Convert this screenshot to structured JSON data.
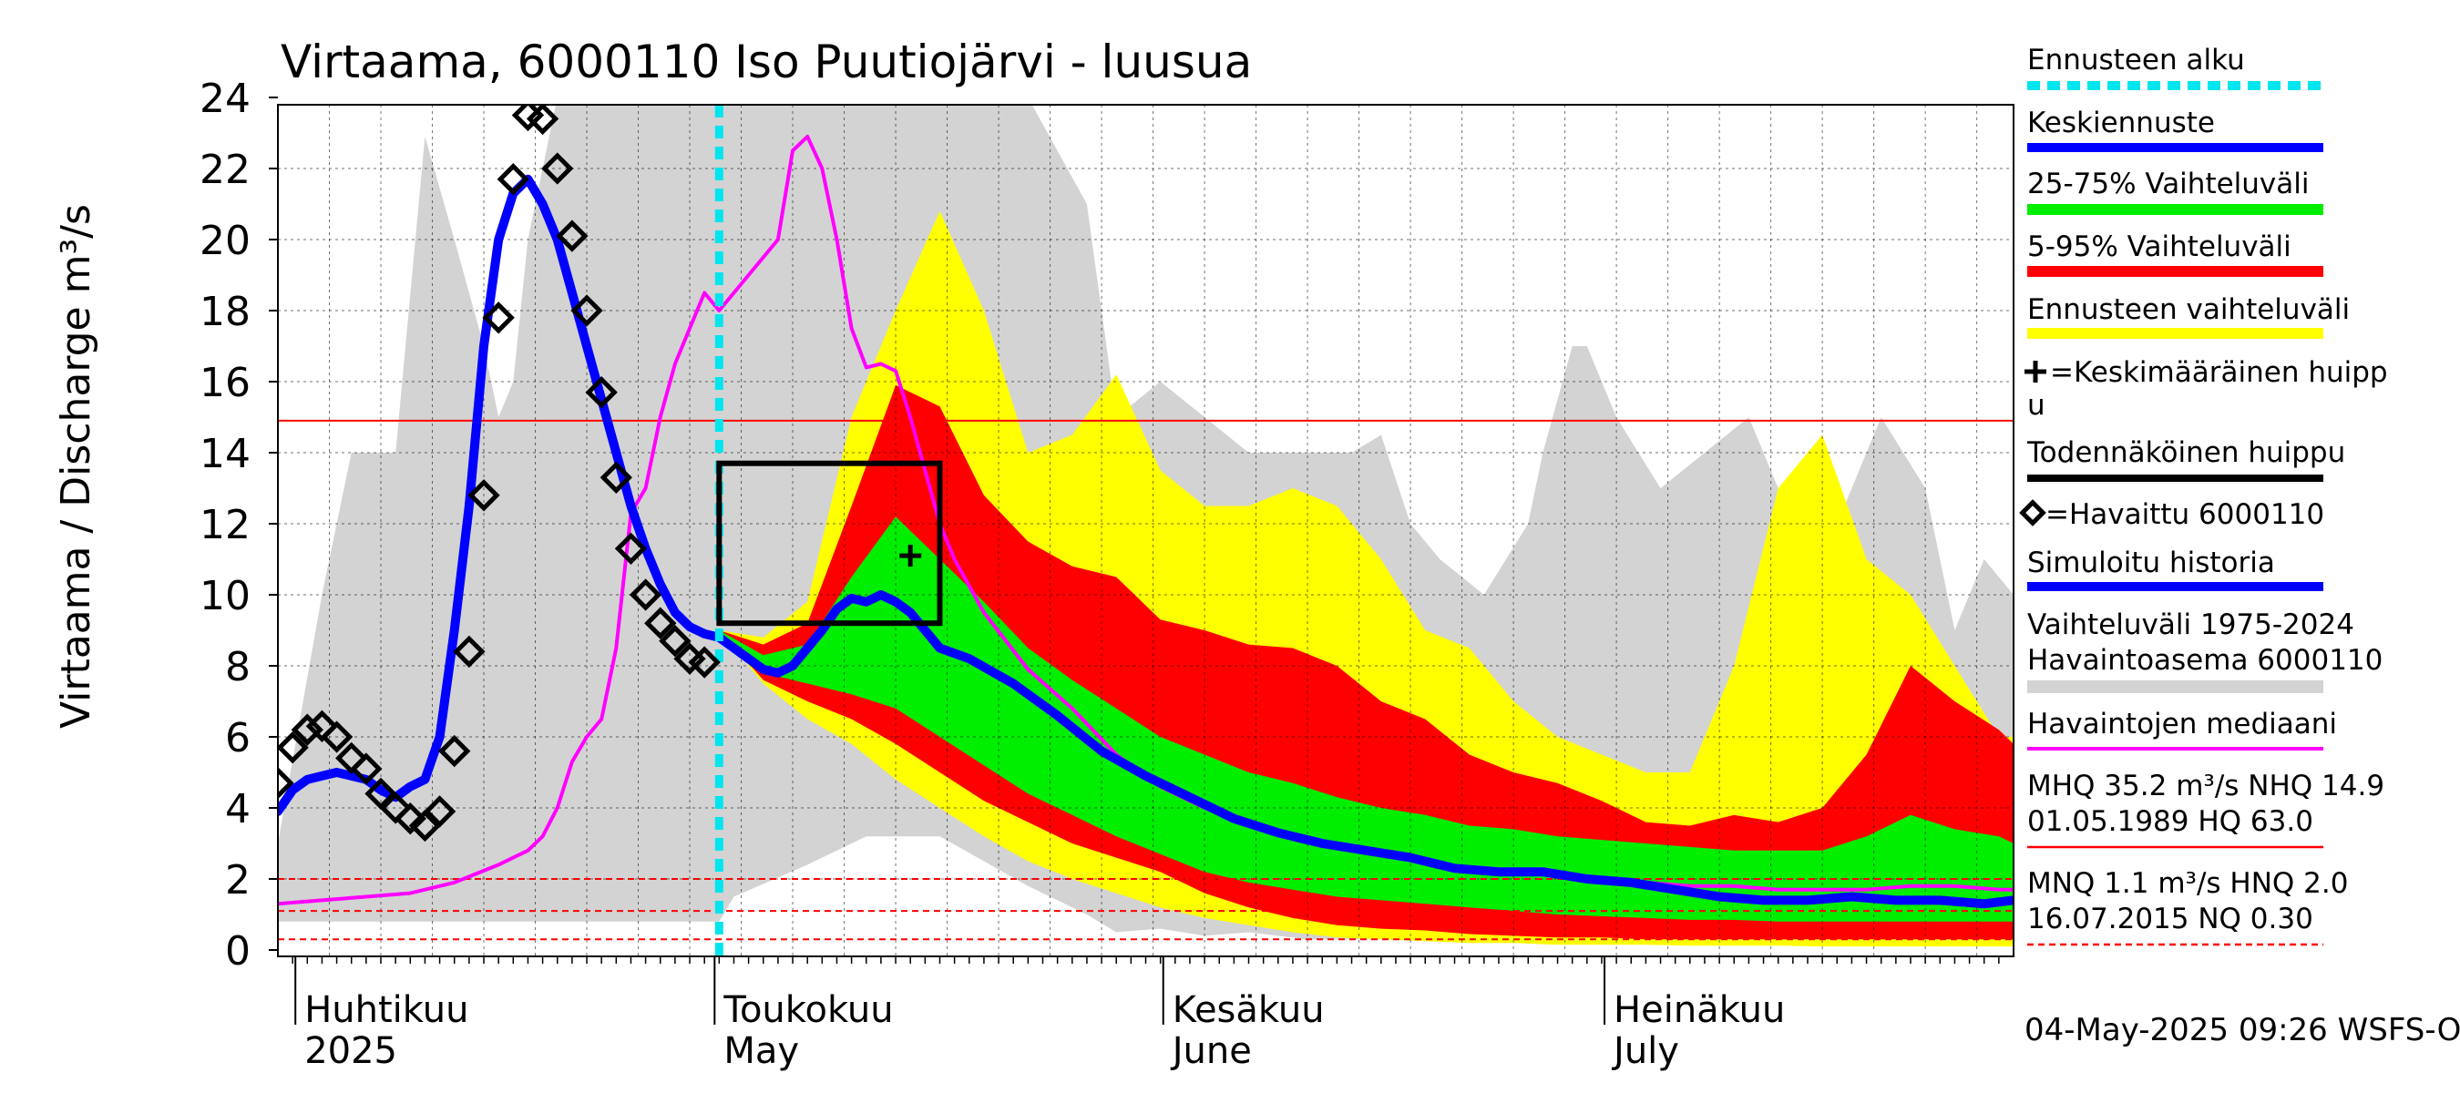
{
  "chart_data": {
    "type": "area",
    "title": "Virtaama, 6000110 Iso Puutiojärvi - luusua",
    "ylabel": "Virtaama / Discharge    m³/s",
    "ylim": [
      0,
      24
    ],
    "yticks": [
      "0",
      "2",
      "4",
      "6",
      "8",
      "10",
      "12",
      "14",
      "16",
      "18",
      "20",
      "22",
      "24"
    ],
    "x_range_days": [
      0,
      118
    ],
    "forecast_start_day": 30,
    "month_labels": [
      {
        "day": 1.5,
        "fi": "Huhtikuu",
        "en": "2025"
      },
      {
        "day": 30,
        "fi": "Toukokuu",
        "en": "May"
      },
      {
        "day": 60.5,
        "fi": "Kesäkuu",
        "en": "June"
      },
      {
        "day": 90.5,
        "fi": "Heinäkuu",
        "en": "July"
      }
    ],
    "reference_lines": [
      {
        "value": 14.9,
        "style": "solid"
      },
      {
        "value": 2.0,
        "style": "dashed"
      },
      {
        "value": 1.1,
        "style": "dashed"
      },
      {
        "value": 0.3,
        "style": "dashed"
      }
    ],
    "historical_range": {
      "x": [
        0,
        3,
        5,
        8,
        10,
        12,
        14,
        15,
        16,
        17,
        19,
        22,
        24,
        27,
        30,
        31,
        36,
        40,
        45,
        51,
        55,
        57,
        60,
        63,
        66,
        70,
        73,
        75,
        77,
        79,
        82,
        85,
        86,
        88,
        89,
        91,
        94,
        97,
        100,
        103,
        106,
        109,
        112,
        114,
        116,
        118
      ],
      "upper": [
        3,
        10,
        14,
        14,
        22.9,
        20,
        17,
        15,
        16,
        20,
        24,
        24,
        24,
        24,
        24,
        24,
        24,
        24,
        24,
        24,
        21,
        15,
        16,
        15,
        14,
        14,
        14,
        14.5,
        12,
        11,
        10,
        12,
        14,
        17,
        17,
        15,
        13,
        14,
        15,
        12,
        12,
        15,
        13,
        9,
        11,
        10
      ],
      "lower": [
        0.8,
        0.8,
        0.8,
        0.8,
        0.8,
        0.8,
        0.8,
        0.8,
        0.8,
        0.8,
        0.8,
        0.8,
        0.8,
        0.8,
        0.8,
        1.5,
        2.4,
        3.2,
        3.2,
        1.8,
        1.0,
        0.5,
        0.6,
        0.4,
        0.5,
        0.3,
        0.3,
        0.3,
        0.3,
        0.3,
        0.3,
        0.3,
        0.3,
        0.3,
        0.3,
        0.3,
        0.2,
        0.2,
        0.2,
        0.2,
        0.2,
        0.2,
        0.2,
        0.2,
        0.2,
        0.2
      ]
    },
    "x": [
      30,
      33,
      36,
      39,
      42,
      45,
      48,
      51,
      54,
      57,
      60,
      63,
      66,
      69,
      72,
      75,
      78,
      81,
      84,
      87,
      90,
      93,
      96,
      99,
      102,
      105,
      108,
      111,
      114,
      117,
      118
    ],
    "forecast_range": {
      "upper": [
        9.0,
        8.8,
        9.8,
        15.0,
        18.0,
        20.8,
        18.0,
        14.0,
        14.5,
        16.2,
        13.5,
        12.5,
        12.5,
        13.0,
        12.5,
        11.0,
        9.0,
        8.5,
        7.0,
        6.0,
        5.5,
        5.0,
        5.0,
        8.0,
        13.0,
        14.5,
        11.0,
        10.0,
        8.0,
        6.0,
        6.0
      ],
      "lower": [
        9.0,
        7.5,
        6.5,
        5.8,
        4.8,
        4.0,
        3.2,
        2.5,
        2.0,
        1.6,
        1.2,
        0.9,
        0.7,
        0.5,
        0.35,
        0.3,
        0.25,
        0.2,
        0.2,
        0.15,
        0.15,
        0.15,
        0.12,
        0.12,
        0.12,
        0.1,
        0.1,
        0.1,
        0.1,
        0.1,
        0.1
      ]
    },
    "p5_95": {
      "upper": [
        9.0,
        8.6,
        9.2,
        12.5,
        15.9,
        15.3,
        12.8,
        11.5,
        10.8,
        10.5,
        9.3,
        9.0,
        8.6,
        8.5,
        8.0,
        7.0,
        6.5,
        5.5,
        5.0,
        4.7,
        4.2,
        3.6,
        3.5,
        3.8,
        3.6,
        4.0,
        5.5,
        8.0,
        7.0,
        6.2,
        5.8
      ],
      "lower": [
        9.0,
        7.6,
        7.0,
        6.5,
        5.8,
        5.0,
        4.2,
        3.6,
        3.0,
        2.6,
        2.2,
        1.6,
        1.2,
        0.9,
        0.7,
        0.6,
        0.55,
        0.45,
        0.4,
        0.35,
        0.35,
        0.3,
        0.3,
        0.3,
        0.3,
        0.3,
        0.3,
        0.3,
        0.3,
        0.3,
        0.3
      ]
    },
    "p25_75": {
      "upper": [
        9.0,
        8.3,
        8.6,
        10.5,
        12.2,
        11.0,
        9.8,
        8.5,
        7.6,
        6.8,
        6.0,
        5.5,
        5.0,
        4.7,
        4.3,
        4.0,
        3.8,
        3.5,
        3.4,
        3.2,
        3.1,
        3.0,
        2.9,
        2.8,
        2.8,
        2.8,
        3.2,
        3.8,
        3.4,
        3.2,
        3.0
      ],
      "lower": [
        9.0,
        7.8,
        7.5,
        7.2,
        6.8,
        6.0,
        5.2,
        4.4,
        3.8,
        3.2,
        2.7,
        2.2,
        1.9,
        1.7,
        1.5,
        1.4,
        1.3,
        1.2,
        1.1,
        1.0,
        0.95,
        0.9,
        0.85,
        0.85,
        0.8,
        0.8,
        0.8,
        0.8,
        0.8,
        0.8,
        0.8
      ]
    },
    "series": [
      {
        "name": "Keskiennuste",
        "color": "#0000ff",
        "x": [
          0,
          1,
          2,
          3,
          4,
          5,
          6,
          7,
          8,
          9,
          10,
          11,
          12,
          13,
          14,
          15,
          16,
          17,
          18,
          19,
          20,
          21,
          22,
          23,
          24,
          25,
          26,
          27,
          28,
          29,
          30,
          31,
          32,
          33,
          34,
          35,
          36,
          37,
          38,
          39,
          40,
          41,
          42,
          43,
          44,
          45,
          47,
          50,
          53,
          56,
          59,
          62,
          65,
          68,
          71,
          74,
          77,
          80,
          83,
          86,
          89,
          92,
          95,
          98,
          101,
          104,
          107,
          110,
          113,
          116,
          118
        ],
        "y": [
          3.9,
          4.5,
          4.8,
          4.9,
          5.0,
          4.9,
          4.8,
          4.5,
          4.3,
          4.6,
          4.8,
          6.0,
          9.0,
          12.5,
          17.0,
          20.0,
          21.3,
          21.7,
          21.0,
          20.0,
          18.5,
          17.0,
          15.5,
          14.0,
          12.5,
          11.3,
          10.3,
          9.5,
          9.1,
          8.9,
          8.8,
          8.5,
          8.2,
          7.9,
          7.8,
          8.0,
          8.5,
          9.0,
          9.6,
          9.9,
          9.8,
          10.0,
          9.8,
          9.5,
          9.0,
          8.5,
          8.2,
          7.5,
          6.6,
          5.6,
          4.9,
          4.3,
          3.7,
          3.3,
          3.0,
          2.8,
          2.6,
          2.3,
          2.2,
          2.2,
          2.0,
          1.9,
          1.7,
          1.5,
          1.4,
          1.4,
          1.5,
          1.4,
          1.4,
          1.3,
          1.4
        ]
      },
      {
        "name": "Havaintojen mediaani",
        "color": "#ff00ff",
        "x": [
          0,
          3,
          6,
          9,
          12,
          15,
          16,
          17,
          18,
          19,
          20,
          21,
          22,
          23,
          24,
          25,
          26,
          27,
          28,
          29,
          30,
          31,
          32,
          33,
          34,
          35,
          36,
          37,
          38,
          39,
          40,
          41,
          42,
          43,
          44,
          45,
          46,
          48,
          51,
          54,
          57,
          60,
          63,
          66,
          69,
          72,
          75,
          78,
          81,
          84,
          87,
          90,
          93,
          96,
          99,
          102,
          105,
          108,
          111,
          114,
          117,
          118
        ],
        "y": [
          1.3,
          1.4,
          1.5,
          1.6,
          1.9,
          2.4,
          2.6,
          2.8,
          3.2,
          4.0,
          5.3,
          6.0,
          6.5,
          8.5,
          12.3,
          13.0,
          15.0,
          16.5,
          17.5,
          18.5,
          18.0,
          18.5,
          19.0,
          19.5,
          20.0,
          22.5,
          22.9,
          22.0,
          20.0,
          17.5,
          16.4,
          16.5,
          16.3,
          15.0,
          13.5,
          12.0,
          11.0,
          9.5,
          7.9,
          6.8,
          5.5,
          4.6,
          4.0,
          3.6,
          3.2,
          2.9,
          2.7,
          2.5,
          2.3,
          2.2,
          2.1,
          2.0,
          1.9,
          1.8,
          1.8,
          1.7,
          1.7,
          1.7,
          1.8,
          1.8,
          1.7,
          1.7
        ]
      }
    ],
    "observed": {
      "name": "Havaittu 6000110",
      "x": [
        0,
        1,
        2,
        3,
        4,
        5,
        6,
        7,
        8,
        9,
        10,
        11,
        12,
        13,
        14,
        15,
        16,
        17,
        18,
        19,
        20,
        21,
        22,
        23,
        24,
        25,
        26,
        27,
        28,
        29
      ],
      "y": [
        4.7,
        5.7,
        6.2,
        6.3,
        6.0,
        5.4,
        5.1,
        4.4,
        4.0,
        3.7,
        3.5,
        3.9,
        5.6,
        8.4,
        12.8,
        17.8,
        21.7,
        23.5,
        23.4,
        22.0,
        20.1,
        18.0,
        15.7,
        13.3,
        11.3,
        10.0,
        9.2,
        8.7,
        8.2,
        8.1
      ]
    },
    "mean_peak": {
      "x": 43,
      "y": 11.1,
      "label": "+=Keskimääräinen huippu"
    },
    "probable_peak_box": {
      "x0": 30,
      "x1": 45,
      "y0": 9.2,
      "y1": 13.7
    },
    "legend": {
      "placement": "right",
      "entries": [
        {
          "label": "Ennusteen alku",
          "color": "#00e5ee",
          "style": "dashed"
        },
        {
          "label": "Keskiennuste",
          "color": "#0000ff"
        },
        {
          "label": "25-75% Vaihteluväli",
          "color": "#00ee00"
        },
        {
          "label": "5-95% Vaihteluväli",
          "color": "#ff0000"
        },
        {
          "label": "Ennusteen vaihteluväli",
          "color": "#ffff00"
        },
        {
          "label": "+=Keskimääräinen huipp u",
          "color": "#000000",
          "style": "cross"
        },
        {
          "label": "Todennäköinen huippu",
          "color": "#000000"
        },
        {
          "label": "◇=Havaittu 6000110",
          "color": "#000000",
          "style": "diamond"
        },
        {
          "label": "Simuloitu historia",
          "color": "#0000ff"
        },
        {
          "label": "Vaihteluväli 1975-2024 Havaintoasema 6000110",
          "color": "#d3d3d3"
        },
        {
          "label": "Havaintojen mediaani",
          "color": "#ff00ff"
        },
        {
          "label": "MHQ 35.2 m³/s NHQ 14.9 01.05.1989 HQ 63.0",
          "color": "#ff0000"
        },
        {
          "label": "MNQ 1.1 m³/s HNQ 2.0 16.07.2015 NQ 0.30",
          "color": "#ff0000",
          "style": "dashed"
        }
      ]
    },
    "footer": "04-May-2025 09:26 WSFS-O"
  },
  "legend_text": {
    "forecast_start": "Ennusteen alku",
    "mean_forecast": "Keskiennuste",
    "range_25_75": "25-75% Vaihteluväli",
    "range_5_95": "5-95% Vaihteluväli",
    "forecast_range": "Ennusteen vaihteluväli",
    "mean_peak_1": "=Keskimääräinen huipp",
    "mean_peak_2": "u",
    "probable_peak": "Todennäköinen huippu",
    "observed": "=Havaittu 6000110",
    "simulated": "Simuloitu historia",
    "hist_range_1": "Vaihteluväli 1975-2024",
    "hist_range_2": " Havaintoasema 6000110",
    "median": "Havaintojen mediaani",
    "mhq_1": "MHQ 35.2 m³/s NHQ 14.9",
    "mhq_2": "01.05.1989 HQ 63.0",
    "mnq_1": "MNQ  1.1 m³/s HNQ  2.0",
    "mnq_2": "16.07.2015 NQ 0.30"
  },
  "colors": {
    "historical": "#d3d3d3",
    "forecast_range": "#ffff00",
    "p5_95": "#ff0000",
    "p25_75": "#00ee00",
    "mean": "#0000ff",
    "median": "#ff00ff",
    "forecast_start": "#00e5ee",
    "reference": "#ff0000"
  }
}
